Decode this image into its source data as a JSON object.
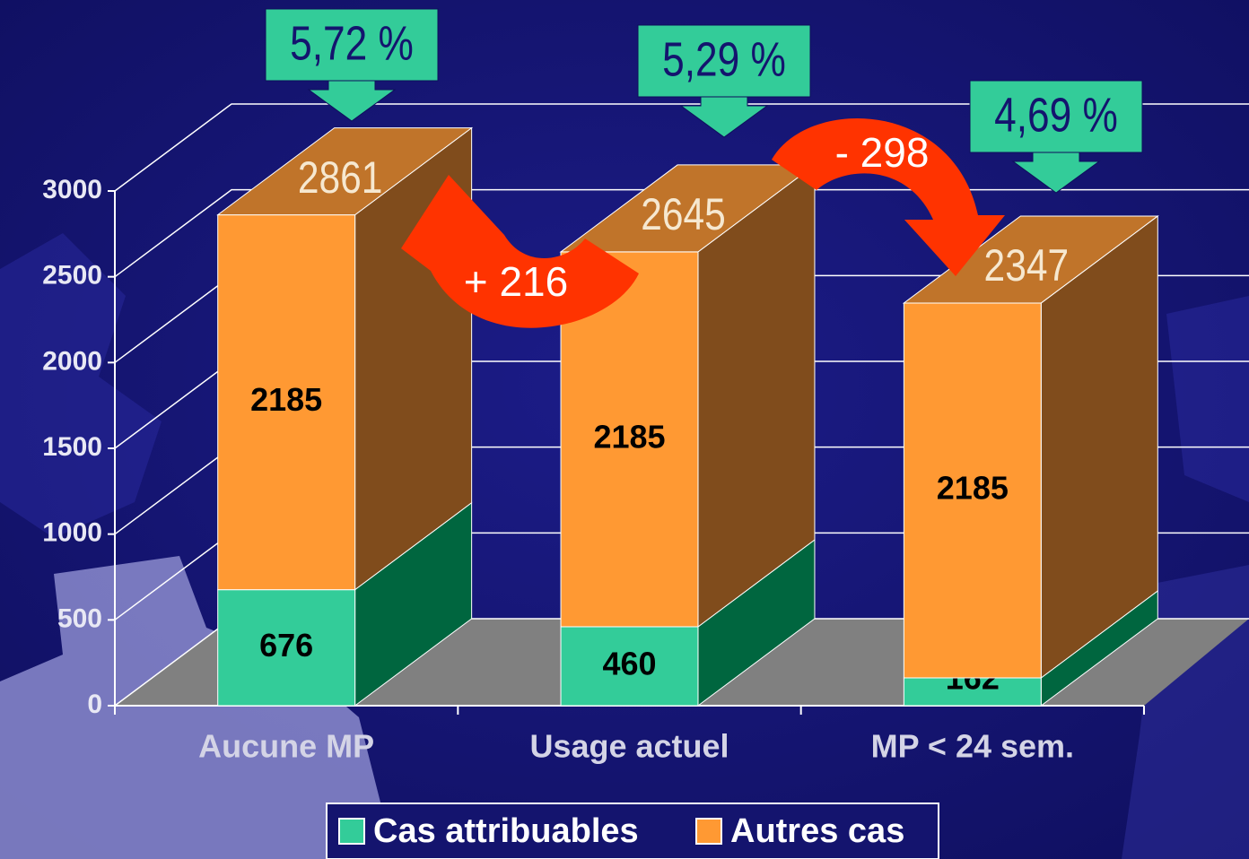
{
  "chart_data": {
    "type": "bar3d_stacked",
    "categories": [
      "Aucune MP",
      "Usage actuel",
      "MP < 24 sem."
    ],
    "series": [
      {
        "name": "Cas attribuables",
        "color": "#33cc99",
        "side_color": "#00663f",
        "values": [
          676,
          460,
          162
        ]
      },
      {
        "name": "Autres cas",
        "color": "#ff9933",
        "side_color": "#804c1c",
        "top_color": "#c0742a",
        "values": [
          2185,
          2185,
          2185
        ]
      }
    ],
    "total_labels": [
      "2861",
      "2645",
      "2347"
    ],
    "percent_labels": [
      "5,72 %",
      "5,29 %",
      "4,69 %"
    ],
    "difference_labels": [
      "+ 216",
      "- 298"
    ],
    "ylim": [
      0,
      3000
    ],
    "yticks": [
      0,
      500,
      1000,
      1500,
      2000,
      2500,
      3000
    ],
    "grid": true,
    "legend": "bottom"
  }
}
